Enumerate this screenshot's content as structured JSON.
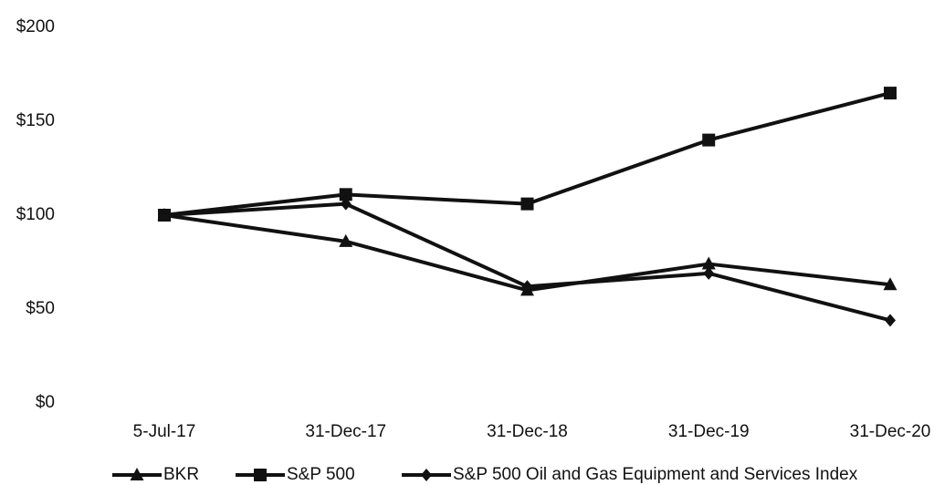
{
  "chart_data": {
    "type": "line",
    "title": "",
    "xlabel": "",
    "ylabel": "",
    "categories": [
      "5-Jul-17",
      "31-Dec-17",
      "31-Dec-18",
      "31-Dec-19",
      "31-Dec-20"
    ],
    "yticks": [
      "$0",
      "$50",
      "$100",
      "$150",
      "$200"
    ],
    "ylim": [
      0,
      200
    ],
    "grid": false,
    "legend": "bottom",
    "series": [
      {
        "name": "BKR",
        "marker": "triangle",
        "values": [
          100,
          86,
          60,
          74,
          63
        ]
      },
      {
        "name": "S&P 500",
        "marker": "square",
        "values": [
          100,
          111,
          106,
          140,
          165
        ]
      },
      {
        "name": "S&P 500 Oil and Gas Equipment and Services Index",
        "marker": "diamond",
        "values": [
          100,
          106,
          62,
          69,
          44
        ]
      }
    ],
    "colors": {
      "line": "#111111"
    }
  }
}
